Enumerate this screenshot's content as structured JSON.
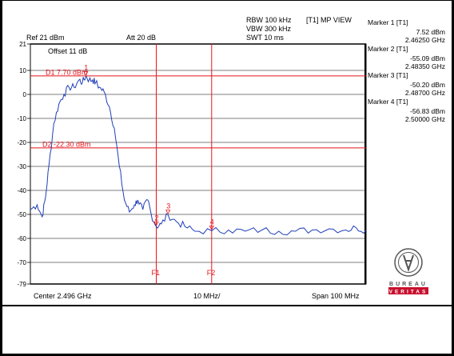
{
  "header": {
    "ref_level": "Ref 21 dBm",
    "attenuation": "Att 20 dB",
    "rbw": "RBW 100 kHz",
    "vbw": "VBW 300 kHz",
    "swt": "SWT 10 ms",
    "trace_mode": "[T1] MP VIEW",
    "offset": "Offset 11 dB"
  },
  "markers": [
    {
      "title": "Marker 1 [T1]",
      "level": "7.52 dBm",
      "freq": "2.46250 GHz",
      "label": "1"
    },
    {
      "title": "Marker 2 [T1]",
      "level": "-55.09 dBm",
      "freq": "2.48350 GHz",
      "label": "2"
    },
    {
      "title": "Marker 3 [T1]",
      "level": "-50.20 dBm",
      "freq": "2.48700 GHz",
      "label": "3"
    },
    {
      "title": "Marker 4 [T1]",
      "level": "-56.83 dBm",
      "freq": "2.50000 GHz",
      "label": "4"
    }
  ],
  "display_lines": {
    "d1_label": "D1 7.70 dBm",
    "d2_label": "D2 -22.30 dBm",
    "f1_label": "F1",
    "f2_label": "F2"
  },
  "footer": {
    "center": "Center 2.496 GHz",
    "div": "10 MHz/",
    "span": "Span 100 MHz"
  },
  "logo": {
    "word": "BUREAU",
    "word2": "VERITAS"
  },
  "colors": {
    "trace": "#1f3fb8",
    "lines": "#e8141b",
    "grid": "#000000",
    "logo_red": "#c8102e"
  },
  "chart_data": {
    "type": "line",
    "x_center_ghz": 2.496,
    "x_span_mhz": 100,
    "x_range_ghz": [
      2.446,
      2.546
    ],
    "ylim": [
      -79,
      21
    ],
    "y_ticks": [
      21,
      10,
      0,
      -10,
      -20,
      -30,
      -40,
      -50,
      -60,
      -70,
      -79
    ],
    "display_line_d1_dbm": 7.7,
    "display_line_d2_dbm": -22.3,
    "frequency_line_f1_ghz": 2.4835,
    "frequency_line_f2_ghz": 2.5,
    "markers": [
      {
        "label": "1",
        "x_ghz": 2.4625,
        "y_dbm": 7.52
      },
      {
        "label": "2",
        "x_ghz": 2.4835,
        "y_dbm": -55.09
      },
      {
        "label": "3",
        "x_ghz": 2.487,
        "y_dbm": -50.2
      },
      {
        "label": "4",
        "x_ghz": 2.5,
        "y_dbm": -56.83
      }
    ],
    "series": [
      {
        "points": [
          [
            2.446,
            -48
          ],
          [
            2.448,
            -46
          ],
          [
            2.4495,
            -51
          ],
          [
            2.4505,
            -43
          ],
          [
            2.4515,
            -30
          ],
          [
            2.453,
            -12
          ],
          [
            2.4545,
            -4
          ],
          [
            2.456,
            0
          ],
          [
            2.4575,
            3
          ],
          [
            2.459,
            3
          ],
          [
            2.4605,
            6
          ],
          [
            2.4615,
            5
          ],
          [
            2.4625,
            7.52
          ],
          [
            2.4635,
            6
          ],
          [
            2.4645,
            6
          ],
          [
            2.4655,
            5
          ],
          [
            2.4665,
            3
          ],
          [
            2.468,
            1
          ],
          [
            2.4695,
            -5
          ],
          [
            2.471,
            -14
          ],
          [
            2.4725,
            -30
          ],
          [
            2.474,
            -44
          ],
          [
            2.4755,
            -49
          ],
          [
            2.477,
            -46
          ],
          [
            2.478,
            -44
          ],
          [
            2.4795,
            -48
          ],
          [
            2.481,
            -44
          ],
          [
            2.482,
            -50
          ],
          [
            2.4835,
            -55.09
          ],
          [
            2.485,
            -54
          ],
          [
            2.487,
            -50.2
          ],
          [
            2.4895,
            -53
          ],
          [
            2.492,
            -55
          ],
          [
            2.495,
            -57
          ],
          [
            2.5,
            -56.83
          ],
          [
            2.505,
            -56.5
          ],
          [
            2.51,
            -57
          ],
          [
            2.515,
            -56.5
          ],
          [
            2.52,
            -57
          ],
          [
            2.525,
            -57
          ],
          [
            2.53,
            -56.5
          ],
          [
            2.535,
            -56
          ],
          [
            2.54,
            -56.5
          ],
          [
            2.543,
            -55.5
          ],
          [
            2.546,
            -56.5
          ]
        ]
      }
    ]
  }
}
